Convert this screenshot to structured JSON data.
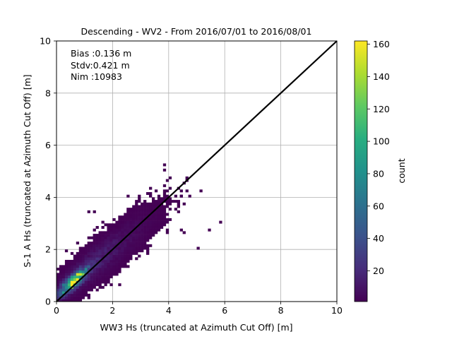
{
  "chart_data": {
    "type": "heatmap",
    "title": "Descending - WV2 - From 2016/07/01 to 2016/08/01",
    "xlabel": "WW3 Hs (truncated at Azimuth Cut Off) [m]",
    "ylabel": "S-1 A Hs (truncated at Azimuth Cut Off) [m]",
    "xlim": [
      0,
      10
    ],
    "ylim": [
      0,
      10
    ],
    "xticks": [
      "0",
      "2",
      "4",
      "6",
      "8",
      "10"
    ],
    "yticks": [
      "0",
      "2",
      "4",
      "6",
      "8",
      "10"
    ],
    "grid": true,
    "bin_size": 0.1,
    "annotations": [
      "Bias :0.136 m",
      "Stdv:0.421 m",
      "Nim :10983"
    ],
    "reference_line": {
      "from": [
        0,
        0
      ],
      "to": [
        10,
        10
      ],
      "color": "#000000"
    },
    "colorbar": {
      "label": "count",
      "range": [
        1,
        162
      ],
      "ticks": [
        "20",
        "40",
        "60",
        "80",
        "100",
        "120",
        "140",
        "160"
      ],
      "colormap": "viridis"
    },
    "density": {
      "peak_x": 0.6,
      "peak_y": 0.78,
      "peak_count": 162,
      "x_extent": [
        0,
        5.9
      ],
      "y_extent": [
        0,
        5.3
      ],
      "outliers": [
        [
          4.4,
          2.8
        ],
        [
          4.6,
          2.6
        ],
        [
          5.1,
          2.05
        ],
        [
          5.4,
          2.75
        ],
        [
          5.85,
          3.05
        ],
        [
          3.85,
          5.2
        ],
        [
          3.85,
          5.05
        ],
        [
          1.1,
          3.45
        ],
        [
          1.35,
          3.45
        ],
        [
          2.55,
          4.1
        ],
        [
          4.45,
          4.05
        ],
        [
          1.2,
          0.3
        ]
      ]
    }
  }
}
